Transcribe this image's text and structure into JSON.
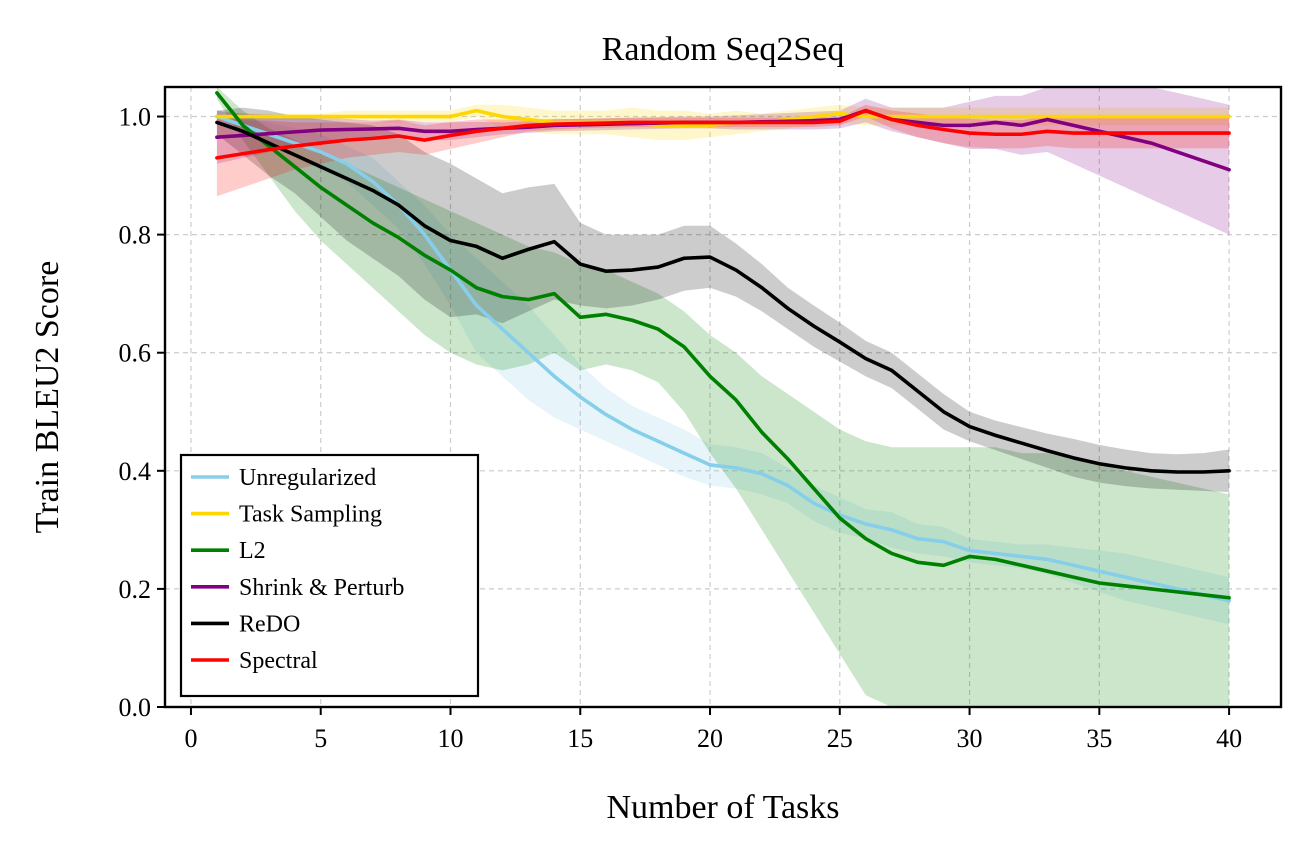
{
  "chart_data": {
    "type": "line",
    "title": "Random Seq2Seq",
    "xlabel": "Number of Tasks",
    "ylabel": "Train BLEU2 Score",
    "xlim": [
      -1,
      42
    ],
    "ylim": [
      0,
      1.05
    ],
    "xticks": [
      0,
      5,
      10,
      15,
      20,
      25,
      30,
      35,
      40
    ],
    "yticks": [
      0.0,
      0.2,
      0.4,
      0.6,
      0.8,
      1.0
    ],
    "xtick_labels": [
      "0",
      "5",
      "10",
      "15",
      "20",
      "25",
      "30",
      "35",
      "40"
    ],
    "ytick_labels": [
      "0.0",
      "0.2",
      "0.4",
      "0.6",
      "0.8",
      "1.0"
    ],
    "grid": true,
    "legend_position": "lower-left",
    "x": [
      1,
      2,
      3,
      4,
      5,
      6,
      7,
      8,
      9,
      10,
      11,
      12,
      13,
      14,
      15,
      16,
      17,
      18,
      19,
      20,
      21,
      22,
      23,
      24,
      25,
      26,
      27,
      28,
      29,
      30,
      31,
      32,
      33,
      34,
      35,
      36,
      37,
      38,
      39,
      40
    ],
    "series": [
      {
        "name": "Unregularized",
        "color": "#87ceeb",
        "band_opacity": 0.2,
        "values": [
          1.0,
          0.985,
          0.97,
          0.955,
          0.94,
          0.92,
          0.89,
          0.85,
          0.8,
          0.74,
          0.68,
          0.64,
          0.6,
          0.56,
          0.525,
          0.495,
          0.47,
          0.45,
          0.43,
          0.41,
          0.405,
          0.395,
          0.375,
          0.345,
          0.325,
          0.31,
          0.3,
          0.285,
          0.28,
          0.265,
          0.26,
          0.255,
          0.25,
          0.24,
          0.23,
          0.22,
          0.21,
          0.2,
          0.19,
          0.18
        ],
        "lower": [
          0.99,
          0.97,
          0.95,
          0.93,
          0.91,
          0.89,
          0.85,
          0.81,
          0.75,
          0.68,
          0.6,
          0.56,
          0.52,
          0.49,
          0.47,
          0.45,
          0.43,
          0.41,
          0.39,
          0.375,
          0.37,
          0.36,
          0.345,
          0.315,
          0.295,
          0.285,
          0.27,
          0.26,
          0.255,
          0.245,
          0.24,
          0.235,
          0.225,
          0.21,
          0.195,
          0.18,
          0.17,
          0.16,
          0.15,
          0.14
        ],
        "upper": [
          1.01,
          1.0,
          0.99,
          0.98,
          0.97,
          0.95,
          0.93,
          0.89,
          0.85,
          0.8,
          0.76,
          0.72,
          0.68,
          0.63,
          0.58,
          0.54,
          0.51,
          0.49,
          0.47,
          0.445,
          0.44,
          0.43,
          0.405,
          0.375,
          0.355,
          0.335,
          0.33,
          0.31,
          0.305,
          0.285,
          0.28,
          0.275,
          0.275,
          0.27,
          0.265,
          0.26,
          0.25,
          0.24,
          0.23,
          0.22
        ]
      },
      {
        "name": "Task Sampling",
        "color": "#ffd700",
        "band_opacity": 0.2,
        "values": [
          1.0,
          1.0,
          1.0,
          1.0,
          1.0,
          1.0,
          1.0,
          1.0,
          1.0,
          1.0,
          1.01,
          1.0,
          0.995,
          0.99,
          0.99,
          0.99,
          0.99,
          0.985,
          0.985,
          0.985,
          0.99,
          0.99,
          0.995,
          1.0,
          1.005,
          1.0,
          1.0,
          1.0,
          1.0,
          1.0,
          1.0,
          1.0,
          1.0,
          1.0,
          1.0,
          1.0,
          1.0,
          1.0,
          1.0,
          1.0
        ],
        "lower": [
          0.995,
          0.995,
          0.995,
          0.995,
          0.995,
          0.99,
          0.99,
          0.99,
          0.99,
          0.99,
          1.0,
          0.98,
          0.975,
          0.97,
          0.97,
          0.97,
          0.965,
          0.96,
          0.96,
          0.965,
          0.97,
          0.975,
          0.98,
          0.985,
          0.99,
          0.985,
          0.985,
          0.985,
          0.985,
          0.985,
          0.985,
          0.985,
          0.985,
          0.985,
          0.985,
          0.985,
          0.985,
          0.985,
          0.985,
          0.985
        ],
        "upper": [
          1.005,
          1.005,
          1.005,
          1.005,
          1.005,
          1.01,
          1.01,
          1.01,
          1.01,
          1.01,
          1.02,
          1.02,
          1.015,
          1.01,
          1.01,
          1.01,
          1.015,
          1.01,
          1.01,
          1.005,
          1.01,
          1.005,
          1.01,
          1.015,
          1.02,
          1.015,
          1.015,
          1.015,
          1.015,
          1.015,
          1.015,
          1.015,
          1.015,
          1.015,
          1.015,
          1.015,
          1.015,
          1.015,
          1.015,
          1.015
        ]
      },
      {
        "name": "L2",
        "color": "#008000",
        "band_opacity": 0.2,
        "values": [
          1.04,
          0.985,
          0.95,
          0.915,
          0.88,
          0.85,
          0.82,
          0.795,
          0.765,
          0.74,
          0.71,
          0.695,
          0.69,
          0.7,
          0.66,
          0.665,
          0.655,
          0.64,
          0.61,
          0.56,
          0.52,
          0.465,
          0.42,
          0.37,
          0.32,
          0.285,
          0.26,
          0.245,
          0.24,
          0.255,
          0.25,
          0.24,
          0.23,
          0.22,
          0.21,
          0.205,
          0.2,
          0.195,
          0.19,
          0.185
        ],
        "lower": [
          1.03,
          0.96,
          0.9,
          0.84,
          0.79,
          0.75,
          0.71,
          0.67,
          0.63,
          0.6,
          0.58,
          0.57,
          0.58,
          0.6,
          0.57,
          0.58,
          0.57,
          0.55,
          0.5,
          0.43,
          0.37,
          0.3,
          0.23,
          0.16,
          0.09,
          0.02,
          0.0,
          0.0,
          0.0,
          0.0,
          0.0,
          0.0,
          0.0,
          0.0,
          0.0,
          0.0,
          0.0,
          0.0,
          0.0,
          0.0
        ],
        "upper": [
          1.05,
          1.01,
          0.98,
          0.96,
          0.94,
          0.92,
          0.9,
          0.88,
          0.86,
          0.84,
          0.82,
          0.8,
          0.78,
          0.77,
          0.75,
          0.74,
          0.72,
          0.7,
          0.67,
          0.63,
          0.6,
          0.56,
          0.53,
          0.5,
          0.47,
          0.45,
          0.44,
          0.44,
          0.44,
          0.44,
          0.44,
          0.43,
          0.43,
          0.42,
          0.41,
          0.4,
          0.39,
          0.38,
          0.37,
          0.36
        ]
      },
      {
        "name": "Shrink & Perturb",
        "color": "#800080",
        "band_opacity": 0.2,
        "values": [
          0.965,
          0.968,
          0.971,
          0.974,
          0.977,
          0.978,
          0.979,
          0.98,
          0.975,
          0.975,
          0.978,
          0.98,
          0.982,
          0.985,
          0.986,
          0.987,
          0.988,
          0.989,
          0.99,
          0.99,
          0.99,
          0.991,
          0.992,
          0.993,
          0.995,
          1.01,
          0.995,
          0.99,
          0.985,
          0.985,
          0.99,
          0.985,
          0.995,
          0.985,
          0.975,
          0.965,
          0.955,
          0.94,
          0.925,
          0.91
        ],
        "lower": [
          0.92,
          0.93,
          0.94,
          0.95,
          0.955,
          0.96,
          0.965,
          0.965,
          0.96,
          0.96,
          0.965,
          0.97,
          0.972,
          0.975,
          0.976,
          0.977,
          0.978,
          0.979,
          0.98,
          0.98,
          0.978,
          0.978,
          0.978,
          0.978,
          0.98,
          0.99,
          0.975,
          0.965,
          0.955,
          0.945,
          0.945,
          0.935,
          0.94,
          0.92,
          0.9,
          0.88,
          0.86,
          0.84,
          0.82,
          0.8
        ],
        "upper": [
          1.01,
          1.005,
          1.003,
          1.0,
          0.999,
          0.996,
          0.993,
          0.995,
          0.99,
          0.99,
          0.991,
          0.99,
          0.992,
          0.995,
          0.996,
          0.997,
          0.998,
          0.999,
          1.0,
          1.0,
          1.002,
          1.004,
          1.006,
          1.008,
          1.01,
          1.03,
          1.015,
          1.015,
          1.015,
          1.025,
          1.035,
          1.035,
          1.05,
          1.05,
          1.05,
          1.05,
          1.05,
          1.04,
          1.03,
          1.02
        ]
      },
      {
        "name": "ReDO",
        "color": "#000000",
        "band_opacity": 0.2,
        "values": [
          0.99,
          0.975,
          0.955,
          0.935,
          0.915,
          0.895,
          0.875,
          0.85,
          0.815,
          0.79,
          0.78,
          0.76,
          0.775,
          0.788,
          0.75,
          0.738,
          0.74,
          0.745,
          0.76,
          0.762,
          0.74,
          0.71,
          0.675,
          0.645,
          0.618,
          0.59,
          0.57,
          0.535,
          0.5,
          0.475,
          0.46,
          0.447,
          0.434,
          0.422,
          0.412,
          0.405,
          0.4,
          0.398,
          0.398,
          0.4
        ],
        "lower": [
          0.97,
          0.935,
          0.9,
          0.87,
          0.83,
          0.79,
          0.76,
          0.73,
          0.69,
          0.66,
          0.665,
          0.65,
          0.67,
          0.69,
          0.68,
          0.675,
          0.68,
          0.69,
          0.705,
          0.71,
          0.695,
          0.67,
          0.64,
          0.61,
          0.585,
          0.56,
          0.54,
          0.505,
          0.47,
          0.45,
          0.435,
          0.42,
          0.405,
          0.39,
          0.38,
          0.374,
          0.37,
          0.368,
          0.366,
          0.364
        ],
        "upper": [
          1.01,
          1.015,
          1.01,
          1.0,
          0.995,
          0.99,
          0.985,
          0.97,
          0.94,
          0.92,
          0.895,
          0.87,
          0.88,
          0.886,
          0.82,
          0.8,
          0.8,
          0.8,
          0.815,
          0.815,
          0.785,
          0.75,
          0.71,
          0.68,
          0.651,
          0.62,
          0.6,
          0.565,
          0.53,
          0.5,
          0.485,
          0.474,
          0.463,
          0.454,
          0.444,
          0.436,
          0.43,
          0.428,
          0.43,
          0.436
        ]
      },
      {
        "name": "Spectral",
        "color": "#ff0000",
        "band_opacity": 0.2,
        "values": [
          0.93,
          0.937,
          0.944,
          0.95,
          0.955,
          0.96,
          0.963,
          0.967,
          0.96,
          0.968,
          0.975,
          0.98,
          0.985,
          0.987,
          0.988,
          0.989,
          0.99,
          0.99,
          0.99,
          0.99,
          0.99,
          0.99,
          0.99,
          0.99,
          0.992,
          1.01,
          0.995,
          0.985,
          0.978,
          0.972,
          0.97,
          0.97,
          0.975,
          0.972,
          0.972,
          0.972,
          0.972,
          0.972,
          0.972,
          0.972
        ],
        "lower": [
          0.865,
          0.88,
          0.895,
          0.91,
          0.92,
          0.93,
          0.935,
          0.94,
          0.935,
          0.945,
          0.955,
          0.965,
          0.975,
          0.978,
          0.98,
          0.981,
          0.982,
          0.982,
          0.982,
          0.982,
          0.982,
          0.982,
          0.982,
          0.982,
          0.985,
          1.0,
          0.98,
          0.965,
          0.955,
          0.948,
          0.946,
          0.946,
          0.95,
          0.946,
          0.946,
          0.946,
          0.946,
          0.946,
          0.946,
          0.946
        ],
        "upper": [
          0.995,
          0.994,
          0.993,
          0.99,
          0.99,
          0.99,
          0.99,
          0.994,
          0.985,
          0.991,
          0.995,
          0.995,
          0.995,
          0.996,
          0.996,
          0.997,
          0.998,
          0.998,
          0.998,
          0.998,
          0.998,
          0.998,
          0.998,
          0.998,
          0.999,
          1.02,
          1.01,
          1.005,
          1.0,
          0.996,
          0.994,
          0.994,
          1.0,
          0.998,
          0.998,
          0.998,
          0.998,
          0.998,
          0.998,
          0.998
        ]
      }
    ]
  }
}
